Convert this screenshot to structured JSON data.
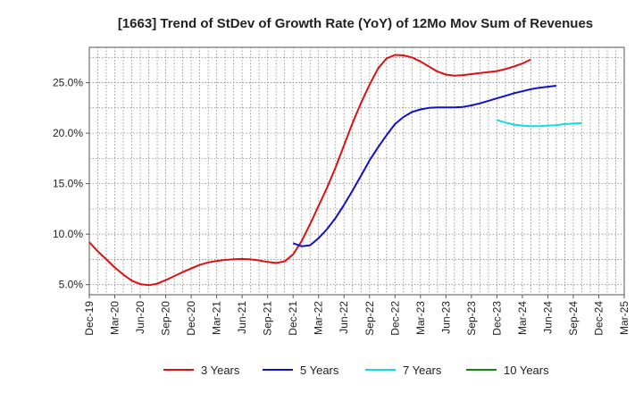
{
  "chart_data": {
    "type": "line",
    "title": "[1663]  Trend of StDev of Growth Rate (YoY) of 12Mo Mov Sum of Revenues",
    "xlabel": "",
    "ylabel": "",
    "ylim": [
      4.0,
      28.5
    ],
    "yticks": [
      5.0,
      10.0,
      15.0,
      20.0,
      25.0
    ],
    "ytick_labels": [
      "5.0%",
      "10.0%",
      "15.0%",
      "20.0%",
      "25.0%"
    ],
    "xtick_labels": [
      "Dec-19",
      "Mar-20",
      "Jun-20",
      "Sep-20",
      "Dec-20",
      "Mar-21",
      "Jun-21",
      "Sep-21",
      "Dec-21",
      "Mar-22",
      "Jun-22",
      "Sep-22",
      "Dec-22",
      "Mar-23",
      "Jun-23",
      "Sep-23",
      "Dec-23",
      "Mar-24",
      "Jun-24",
      "Sep-24",
      "Dec-24",
      "Mar-25"
    ],
    "grid": true,
    "legend_position": "bottom",
    "series": [
      {
        "name": "3 Years",
        "color": "#dd1111",
        "start_index": 0,
        "values": [
          9.2,
          8.3,
          7.5,
          6.7,
          6.0,
          5.4,
          5.05,
          4.95,
          5.1,
          5.45,
          5.85,
          6.25,
          6.6,
          6.95,
          7.2,
          7.35,
          7.45,
          7.52,
          7.55,
          7.5,
          7.4,
          7.25,
          7.15,
          7.3,
          8.0,
          9.3,
          11.0,
          12.8,
          14.6,
          16.6,
          18.8,
          21.0,
          23.0,
          24.8,
          26.4,
          27.4,
          27.75,
          27.7,
          27.5,
          27.1,
          26.6,
          26.1,
          25.8,
          25.7,
          25.75,
          25.85,
          25.95,
          26.05,
          26.15,
          26.35,
          26.6,
          26.9,
          27.3
        ]
      },
      {
        "name": "5 Years",
        "color": "#1111cc",
        "start_index": 24,
        "values": [
          9.1,
          8.8,
          8.9,
          9.6,
          10.5,
          11.6,
          12.9,
          14.3,
          15.8,
          17.3,
          18.6,
          19.8,
          20.9,
          21.6,
          22.1,
          22.35,
          22.5,
          22.55,
          22.55,
          22.55,
          22.6,
          22.75,
          22.95,
          23.2,
          23.45,
          23.7,
          23.95,
          24.15,
          24.35,
          24.5,
          24.6,
          24.7
        ]
      },
      {
        "name": "7 Years",
        "color": "#11dddd",
        "start_index": 48,
        "values": [
          21.3,
          21.05,
          20.85,
          20.75,
          20.7,
          20.7,
          20.75,
          20.8,
          20.9,
          20.95,
          21.0
        ]
      },
      {
        "name": "10 Years",
        "color": "#118811",
        "start_index": 0,
        "values": []
      }
    ]
  }
}
